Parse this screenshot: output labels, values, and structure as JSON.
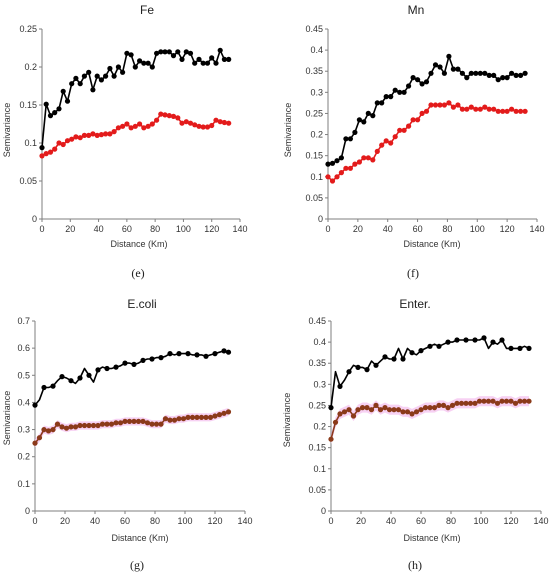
{
  "colors": {
    "upper": "#000000",
    "lower": "#e31b1b",
    "lower_brown": "#8b3a1a",
    "band": "#f5c6f0"
  },
  "chart_data": [
    {
      "panel": "(e)",
      "type": "line",
      "title": "Fe",
      "xlabel": "Distance (Km)",
      "ylabel": "Semivariance",
      "xlim": [
        0,
        140
      ],
      "ylim": [
        0,
        0.25
      ],
      "xticks": [
        0,
        20,
        40,
        60,
        80,
        100,
        120,
        140
      ],
      "yticks": [
        0,
        0.05,
        0.1,
        0.15,
        0.2,
        0.25
      ],
      "ytick_labels": [
        "0",
        "0.05",
        "0.1",
        "0.15",
        "0.2",
        "0.25"
      ],
      "series": [
        {
          "color": "#000000",
          "x": [
            0,
            3,
            6,
            9,
            12,
            15,
            18,
            21,
            24,
            27,
            30,
            33,
            36,
            39,
            42,
            45,
            48,
            51,
            54,
            57,
            60,
            63,
            66,
            69,
            72,
            75,
            78,
            81,
            84,
            87,
            90,
            93,
            96,
            99,
            102,
            105,
            108,
            111,
            114,
            117,
            120,
            123,
            126,
            129,
            132
          ],
          "y": [
            0.094,
            0.151,
            0.136,
            0.14,
            0.145,
            0.168,
            0.155,
            0.178,
            0.185,
            0.178,
            0.188,
            0.193,
            0.17,
            0.188,
            0.183,
            0.188,
            0.198,
            0.188,
            0.2,
            0.193,
            0.218,
            0.216,
            0.2,
            0.208,
            0.205,
            0.205,
            0.2,
            0.218,
            0.22,
            0.22,
            0.22,
            0.215,
            0.22,
            0.21,
            0.22,
            0.218,
            0.205,
            0.21,
            0.205,
            0.205,
            0.212,
            0.205,
            0.222,
            0.21,
            0.21
          ]
        },
        {
          "color": "#e31b1b",
          "x": [
            0,
            3,
            6,
            9,
            12,
            15,
            18,
            21,
            24,
            27,
            30,
            33,
            36,
            39,
            42,
            45,
            48,
            51,
            54,
            57,
            60,
            63,
            66,
            69,
            72,
            75,
            78,
            81,
            84,
            87,
            90,
            93,
            96,
            99,
            102,
            105,
            108,
            111,
            114,
            117,
            120,
            123,
            126,
            129,
            132
          ],
          "y": [
            0.083,
            0.086,
            0.088,
            0.092,
            0.1,
            0.098,
            0.103,
            0.105,
            0.108,
            0.107,
            0.11,
            0.11,
            0.112,
            0.11,
            0.111,
            0.112,
            0.112,
            0.115,
            0.12,
            0.122,
            0.125,
            0.12,
            0.122,
            0.125,
            0.12,
            0.122,
            0.125,
            0.13,
            0.138,
            0.137,
            0.136,
            0.135,
            0.133,
            0.126,
            0.128,
            0.126,
            0.124,
            0.122,
            0.121,
            0.121,
            0.123,
            0.13,
            0.128,
            0.127,
            0.126
          ]
        }
      ]
    },
    {
      "panel": "(f)",
      "type": "line",
      "title": "Mn",
      "xlabel": "Distance (Km)",
      "ylabel": "Semivariance",
      "xlim": [
        0,
        140
      ],
      "ylim": [
        0,
        0.45
      ],
      "xticks": [
        0,
        20,
        40,
        60,
        80,
        100,
        120,
        140
      ],
      "yticks": [
        0,
        0.05,
        0.1,
        0.15,
        0.2,
        0.25,
        0.3,
        0.35,
        0.4,
        0.45
      ],
      "ytick_labels": [
        "0",
        "0.05",
        "0.1",
        "0.15",
        "0.2",
        "0.25",
        "0.3",
        "0.35",
        "0.4",
        "0.45"
      ],
      "series": [
        {
          "color": "#000000",
          "x": [
            0,
            3,
            6,
            9,
            12,
            15,
            18,
            21,
            24,
            27,
            30,
            33,
            36,
            39,
            42,
            45,
            48,
            51,
            54,
            57,
            60,
            63,
            66,
            69,
            72,
            75,
            78,
            81,
            84,
            87,
            90,
            93,
            96,
            99,
            102,
            105,
            108,
            111,
            114,
            117,
            120,
            123,
            126,
            129,
            132
          ],
          "y": [
            0.13,
            0.132,
            0.138,
            0.145,
            0.19,
            0.19,
            0.205,
            0.235,
            0.23,
            0.25,
            0.245,
            0.275,
            0.275,
            0.29,
            0.29,
            0.305,
            0.3,
            0.3,
            0.315,
            0.335,
            0.33,
            0.32,
            0.325,
            0.345,
            0.365,
            0.36,
            0.345,
            0.385,
            0.355,
            0.355,
            0.345,
            0.335,
            0.345,
            0.345,
            0.345,
            0.345,
            0.34,
            0.34,
            0.33,
            0.335,
            0.335,
            0.345,
            0.34,
            0.34,
            0.345
          ]
        },
        {
          "color": "#e31b1b",
          "x": [
            0,
            3,
            6,
            9,
            12,
            15,
            18,
            21,
            24,
            27,
            30,
            33,
            36,
            39,
            42,
            45,
            48,
            51,
            54,
            57,
            60,
            63,
            66,
            69,
            72,
            75,
            78,
            81,
            84,
            87,
            90,
            93,
            96,
            99,
            102,
            105,
            108,
            111,
            114,
            117,
            120,
            123,
            126,
            129,
            132
          ],
          "y": [
            0.1,
            0.09,
            0.1,
            0.11,
            0.12,
            0.12,
            0.13,
            0.135,
            0.145,
            0.145,
            0.14,
            0.16,
            0.175,
            0.185,
            0.18,
            0.195,
            0.21,
            0.21,
            0.22,
            0.235,
            0.235,
            0.25,
            0.255,
            0.27,
            0.27,
            0.27,
            0.27,
            0.275,
            0.265,
            0.27,
            0.26,
            0.26,
            0.265,
            0.26,
            0.26,
            0.265,
            0.26,
            0.26,
            0.255,
            0.255,
            0.255,
            0.26,
            0.255,
            0.255,
            0.255
          ]
        }
      ]
    },
    {
      "panel": "(g)",
      "type": "line",
      "title": "E.coli",
      "xlabel": "Distance (Km)",
      "ylabel": "Semivariance",
      "xlim": [
        0,
        140
      ],
      "ylim": [
        0,
        0.7
      ],
      "xticks": [
        0,
        20,
        40,
        60,
        80,
        100,
        120,
        140
      ],
      "yticks": [
        0,
        0.1,
        0.2,
        0.3,
        0.4,
        0.5,
        0.6,
        0.7
      ],
      "ytick_labels": [
        "0",
        "0.1",
        "0.2",
        "0.3",
        "0.4",
        "0.5",
        "0.6",
        "0.7"
      ],
      "series": [
        {
          "color": "#000000",
          "marker_every": 2,
          "x": [
            0,
            3,
            6,
            9,
            12,
            15,
            18,
            21,
            24,
            27,
            30,
            33,
            36,
            39,
            42,
            45,
            48,
            51,
            54,
            57,
            60,
            63,
            66,
            69,
            72,
            75,
            78,
            81,
            84,
            87,
            90,
            93,
            96,
            99,
            102,
            105,
            108,
            111,
            114,
            117,
            120,
            123,
            126,
            129
          ],
          "y": [
            0.39,
            0.41,
            0.455,
            0.455,
            0.46,
            0.48,
            0.495,
            0.49,
            0.48,
            0.47,
            0.49,
            0.525,
            0.5,
            0.475,
            0.52,
            0.53,
            0.525,
            0.525,
            0.53,
            0.535,
            0.545,
            0.545,
            0.54,
            0.545,
            0.555,
            0.56,
            0.56,
            0.565,
            0.565,
            0.57,
            0.58,
            0.575,
            0.58,
            0.58,
            0.58,
            0.575,
            0.575,
            0.575,
            0.57,
            0.575,
            0.58,
            0.585,
            0.59,
            0.585
          ]
        },
        {
          "color": "#8b3a1a",
          "band": 0.015,
          "x": [
            0,
            3,
            6,
            9,
            12,
            15,
            18,
            21,
            24,
            27,
            30,
            33,
            36,
            39,
            42,
            45,
            48,
            51,
            54,
            57,
            60,
            63,
            66,
            69,
            72,
            75,
            78,
            81,
            84,
            87,
            90,
            93,
            96,
            99,
            102,
            105,
            108,
            111,
            114,
            117,
            120,
            123,
            126,
            129
          ],
          "y": [
            0.25,
            0.27,
            0.3,
            0.295,
            0.3,
            0.32,
            0.31,
            0.305,
            0.31,
            0.31,
            0.315,
            0.315,
            0.315,
            0.315,
            0.315,
            0.32,
            0.32,
            0.32,
            0.325,
            0.325,
            0.33,
            0.33,
            0.33,
            0.33,
            0.33,
            0.325,
            0.32,
            0.32,
            0.32,
            0.34,
            0.335,
            0.335,
            0.34,
            0.34,
            0.345,
            0.345,
            0.345,
            0.345,
            0.345,
            0.345,
            0.35,
            0.355,
            0.36,
            0.365
          ]
        }
      ]
    },
    {
      "panel": "(h)",
      "type": "line",
      "title": "Enter.",
      "xlabel": "Distance (Km)",
      "ylabel": "Semivariance",
      "xlim": [
        0,
        140
      ],
      "ylim": [
        0,
        0.45
      ],
      "xticks": [
        0,
        20,
        40,
        60,
        80,
        100,
        120,
        140
      ],
      "yticks": [
        0,
        0.05,
        0.1,
        0.15,
        0.2,
        0.25,
        0.3,
        0.35,
        0.4,
        0.45
      ],
      "ytick_labels": [
        "0",
        "0.05",
        "0.1",
        "0.15",
        "0.2",
        "0.25",
        "0.3",
        "0.35",
        "0.4",
        "0.45"
      ],
      "series": [
        {
          "color": "#000000",
          "marker_every": 2,
          "x": [
            0,
            3,
            6,
            9,
            12,
            15,
            18,
            21,
            24,
            27,
            30,
            33,
            36,
            39,
            42,
            45,
            48,
            51,
            54,
            57,
            60,
            63,
            66,
            69,
            72,
            75,
            78,
            81,
            84,
            87,
            90,
            93,
            96,
            99,
            102,
            105,
            108,
            111,
            114,
            117,
            120,
            123,
            126,
            129,
            132
          ],
          "y": [
            0.245,
            0.33,
            0.295,
            0.31,
            0.33,
            0.345,
            0.34,
            0.34,
            0.335,
            0.355,
            0.345,
            0.355,
            0.365,
            0.36,
            0.36,
            0.385,
            0.36,
            0.385,
            0.375,
            0.37,
            0.38,
            0.385,
            0.39,
            0.395,
            0.39,
            0.395,
            0.4,
            0.4,
            0.405,
            0.405,
            0.405,
            0.405,
            0.405,
            0.405,
            0.41,
            0.385,
            0.4,
            0.395,
            0.405,
            0.385,
            0.385,
            0.385,
            0.385,
            0.39,
            0.385
          ]
        },
        {
          "color": "#8b3a1a",
          "band": 0.012,
          "x": [
            0,
            3,
            6,
            9,
            12,
            15,
            18,
            21,
            24,
            27,
            30,
            33,
            36,
            39,
            42,
            45,
            48,
            51,
            54,
            57,
            60,
            63,
            66,
            69,
            72,
            75,
            78,
            81,
            84,
            87,
            90,
            93,
            96,
            99,
            102,
            105,
            108,
            111,
            114,
            117,
            120,
            123,
            126,
            129,
            132
          ],
          "y": [
            0.17,
            0.21,
            0.23,
            0.235,
            0.24,
            0.225,
            0.24,
            0.245,
            0.245,
            0.24,
            0.25,
            0.24,
            0.245,
            0.24,
            0.24,
            0.24,
            0.235,
            0.235,
            0.23,
            0.235,
            0.24,
            0.245,
            0.245,
            0.245,
            0.25,
            0.25,
            0.245,
            0.25,
            0.255,
            0.255,
            0.255,
            0.255,
            0.255,
            0.26,
            0.26,
            0.26,
            0.26,
            0.255,
            0.26,
            0.26,
            0.26,
            0.255,
            0.26,
            0.26,
            0.26
          ]
        }
      ]
    }
  ]
}
